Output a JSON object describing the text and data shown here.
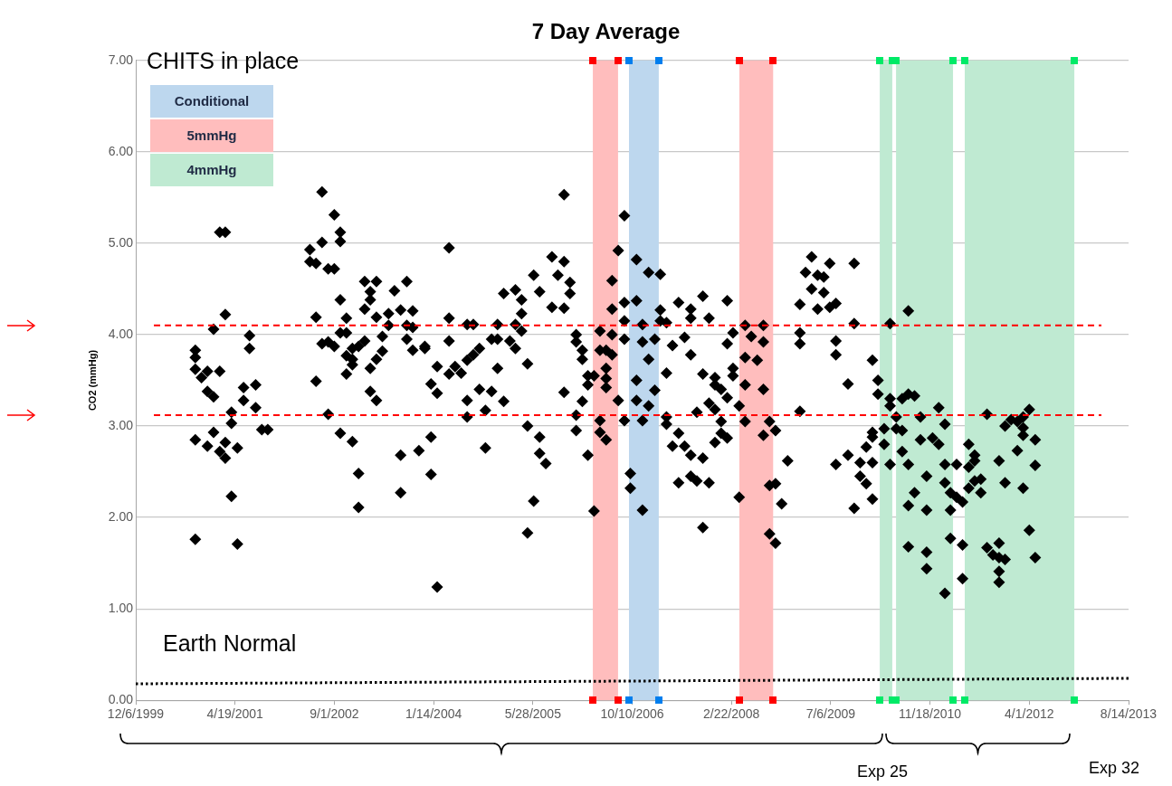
{
  "chart_data": {
    "type": "scatter",
    "title": "7 Day Average",
    "ylabel": "CO2 (mmHg)",
    "xlim": [
      "1999-12-06",
      "2013-08-14"
    ],
    "xticks": [
      {
        "value": "1999-12-06",
        "label": "12/6/1999"
      },
      {
        "value": "2001-04-19",
        "label": "4/19/2001"
      },
      {
        "value": "2002-09-01",
        "label": "9/1/2002"
      },
      {
        "value": "2004-01-14",
        "label": "1/14/2004"
      },
      {
        "value": "2005-05-28",
        "label": "5/28/2005"
      },
      {
        "value": "2006-10-10",
        "label": "10/10/2006"
      },
      {
        "value": "2008-02-22",
        "label": "2/22/2008"
      },
      {
        "value": "2009-07-06",
        "label": "7/6/2009"
      },
      {
        "value": "2010-11-18",
        "label": "11/18/2010"
      },
      {
        "value": "2012-04-01",
        "label": "4/1/2012"
      },
      {
        "value": "2013-08-14",
        "label": "8/14/2013"
      }
    ],
    "ylim": [
      0,
      7
    ],
    "yticks": [
      {
        "value": 0,
        "label": "0.00"
      },
      {
        "value": 1,
        "label": "1.00"
      },
      {
        "value": 2,
        "label": "2.00"
      },
      {
        "value": 3,
        "label": "3.00"
      },
      {
        "value": 4,
        "label": "4.00"
      },
      {
        "value": 5,
        "label": "5.00"
      },
      {
        "value": 6,
        "label": "6.00"
      },
      {
        "value": 7,
        "label": "7.00"
      }
    ],
    "grid": "y",
    "marker": "diamond",
    "series": [
      {
        "color": "#000000",
        "x": [
          "2000-10",
          "2000-10",
          "2000-10",
          "2000-10",
          "2000-10",
          "2000-11",
          "2000-12",
          "2000-12",
          "2000-12",
          "2001-01",
          "2001-01",
          "2001-01",
          "2001-02",
          "2001-02",
          "2001-02",
          "2001-03",
          "2001-03",
          "2001-03",
          "2001-03",
          "2001-04",
          "2001-04",
          "2001-04",
          "2001-05",
          "2001-05",
          "2001-06",
          "2001-06",
          "2001-07",
          "2001-07",
          "2001-08",
          "2001-08",
          "2001-09",
          "2001-10",
          "2002-05",
          "2002-05",
          "2002-06",
          "2002-06",
          "2002-06",
          "2002-07",
          "2002-07",
          "2002-07",
          "2002-08",
          "2002-08",
          "2002-08",
          "2002-09",
          "2002-09",
          "2002-09",
          "2002-10",
          "2002-10",
          "2002-10",
          "2002-10",
          "2002-10",
          "2002-11",
          "2002-11",
          "2002-11",
          "2002-11",
          "2002-12",
          "2002-12",
          "2002-12",
          "2002-12",
          "2003-01",
          "2003-01",
          "2003-01",
          "2003-02",
          "2003-02",
          "2003-02",
          "2003-03",
          "2003-03",
          "2003-03",
          "2003-03",
          "2003-04",
          "2003-04",
          "2003-04",
          "2003-04",
          "2003-05",
          "2003-05",
          "2003-06",
          "2003-06",
          "2003-07",
          "2003-08",
          "2003-08",
          "2003-08",
          "2003-09",
          "2003-09",
          "2003-09",
          "2003-10",
          "2003-10",
          "2003-10",
          "2003-11",
          "2003-12",
          "2003-12",
          "2004-01",
          "2004-01",
          "2004-01",
          "2004-02",
          "2004-02",
          "2004-02",
          "2004-04",
          "2004-04",
          "2004-04",
          "2004-04",
          "2004-05",
          "2004-06",
          "2004-07",
          "2004-07",
          "2004-07",
          "2004-07",
          "2004-08",
          "2004-08",
          "2004-09",
          "2004-09",
          "2004-10",
          "2004-10",
          "2004-11",
          "2004-11",
          "2004-12",
          "2004-12",
          "2004-12",
          "2005-01",
          "2005-01",
          "2005-02",
          "2005-03",
          "2005-03",
          "2005-03",
          "2005-04",
          "2005-04",
          "2005-04",
          "2005-05",
          "2005-05",
          "2005-05",
          "2005-06",
          "2005-06",
          "2005-07",
          "2005-07",
          "2005-07",
          "2005-08",
          "2005-09",
          "2005-09",
          "2005-10",
          "2005-11",
          "2005-11",
          "2005-11",
          "2005-11",
          "2005-12",
          "2005-12",
          "2006-01",
          "2006-01",
          "2006-01",
          "2006-01",
          "2006-02",
          "2006-02",
          "2006-02",
          "2006-03",
          "2006-03",
          "2006-03",
          "2006-04",
          "2006-04",
          "2006-05",
          "2006-05",
          "2006-05",
          "2006-05",
          "2006-06",
          "2006-06",
          "2006-06",
          "2006-06",
          "2006-06",
          "2006-07",
          "2006-07",
          "2006-07",
          "2006-08",
          "2006-07",
          "2006-08",
          "2006-09",
          "2006-09",
          "2006-09",
          "2006-09",
          "2006-09",
          "2006-10",
          "2006-10",
          "2006-11",
          "2006-11",
          "2006-11",
          "2006-11",
          "2006-12",
          "2006-12",
          "2006-12",
          "2006-12",
          "2007-01",
          "2007-01",
          "2007-01",
          "2007-02",
          "2007-02",
          "2007-03",
          "2007-03",
          "2007-03",
          "2007-04",
          "2007-04",
          "2007-04",
          "2007-04",
          "2007-05",
          "2007-05",
          "2007-06",
          "2007-06",
          "2007-06",
          "2007-07",
          "2007-07",
          "2007-08",
          "2007-08",
          "2007-08",
          "2007-08",
          "2007-08",
          "2007-09",
          "2007-09",
          "2007-10",
          "2007-10",
          "2007-10",
          "2007-10",
          "2007-11",
          "2007-11",
          "2007-11",
          "2007-12",
          "2007-12",
          "2007-12",
          "2007-12",
          "2008-01",
          "2008-01",
          "2008-01",
          "2008-02",
          "2008-02",
          "2008-02",
          "2008-02",
          "2008-03",
          "2008-03",
          "2008-03",
          "2008-04",
          "2008-04",
          "2008-05",
          "2008-05",
          "2008-05",
          "2008-05",
          "2008-06",
          "2008-07",
          "2008-08",
          "2008-08",
          "2008-08",
          "2008-08",
          "2008-09",
          "2008-09",
          "2008-09",
          "2008-10",
          "2008-10",
          "2008-10",
          "2008-11",
          "2008-12",
          "2009-02",
          "2009-02",
          "2009-02",
          "2009-02",
          "2009-03",
          "2009-04",
          "2009-04",
          "2009-05",
          "2009-05",
          "2009-06",
          "2009-06",
          "2009-07",
          "2009-07",
          "2009-08",
          "2009-08",
          "2009-08",
          "2009-08",
          "2009-10",
          "2009-10",
          "2009-11",
          "2009-11",
          "2009-11",
          "2009-12",
          "2009-12",
          "2010-01",
          "2010-01",
          "2010-02",
          "2010-02",
          "2010-02",
          "2010-02",
          "2010-02",
          "2010-03",
          "2010-03",
          "2010-04",
          "2010-04",
          "2010-05",
          "2010-05",
          "2010-05",
          "2010-05",
          "2010-06",
          "2010-06",
          "2010-07",
          "2010-07",
          "2010-07",
          "2010-08",
          "2010-08",
          "2010-08",
          "2010-08",
          "2010-08",
          "2010-09",
          "2010-09",
          "2010-10",
          "2010-10",
          "2010-11",
          "2010-11",
          "2010-11",
          "2010-11",
          "2010-12",
          "2011-01",
          "2011-01",
          "2011-02",
          "2011-02",
          "2011-02",
          "2011-02",
          "2011-03",
          "2011-03",
          "2011-03",
          "2011-04",
          "2011-04",
          "2011-05",
          "2011-05",
          "2011-05",
          "2011-06",
          "2011-06",
          "2011-06",
          "2011-07",
          "2011-07",
          "2011-07",
          "2011-08",
          "2011-08",
          "2011-09",
          "2011-09",
          "2011-10",
          "2011-11",
          "2011-11",
          "2011-11",
          "2011-11",
          "2011-11",
          "2011-12",
          "2011-12",
          "2011-12",
          "2012-01",
          "2012-02",
          "2012-02",
          "2012-03",
          "2012-03",
          "2012-03",
          "2012-03",
          "2012-04",
          "2012-04",
          "2012-05",
          "2012-05",
          "2012-05"
        ],
        "values": [
          1.76,
          2.85,
          3.62,
          3.83,
          3.75,
          3.53,
          3.38,
          2.78,
          3.6,
          4.06,
          3.32,
          2.93,
          2.72,
          3.6,
          5.12,
          5.12,
          2.65,
          2.82,
          4.22,
          3.15,
          3.03,
          2.23,
          1.71,
          2.76,
          3.42,
          3.28,
          3.99,
          3.85,
          3.45,
          3.2,
          2.96,
          2.96,
          4.8,
          4.93,
          3.49,
          4.19,
          4.78,
          5.56,
          3.9,
          5.01,
          3.92,
          4.72,
          3.13,
          5.31,
          4.72,
          3.87,
          2.92,
          5.12,
          4.02,
          5.02,
          4.38,
          3.57,
          3.77,
          4.02,
          4.18,
          3.67,
          3.85,
          3.73,
          2.83,
          2.48,
          2.11,
          3.87,
          4.58,
          4.28,
          3.93,
          3.63,
          4.38,
          3.38,
          4.47,
          4.19,
          4.58,
          3.73,
          3.28,
          3.82,
          3.98,
          4.1,
          4.23,
          4.48,
          2.68,
          2.27,
          4.27,
          4.1,
          3.95,
          4.58,
          3.83,
          4.26,
          4.08,
          2.73,
          3.87,
          3.85,
          3.46,
          2.47,
          2.88,
          1.24,
          3.36,
          3.65,
          3.57,
          4.18,
          4.95,
          3.93,
          3.65,
          3.58,
          4.11,
          3.72,
          3.28,
          3.1,
          3.78,
          4.11,
          3.4,
          3.85,
          2.76,
          3.17,
          3.95,
          3.38,
          3.63,
          4.11,
          3.95,
          4.45,
          3.27,
          3.93,
          4.11,
          3.85,
          4.49,
          4.23,
          4.04,
          4.38,
          1.83,
          3.68,
          3.0,
          2.18,
          4.65,
          2.7,
          2.88,
          4.47,
          2.59,
          4.3,
          4.85,
          4.65,
          5.53,
          3.37,
          4.29,
          4.8,
          4.45,
          4.57,
          4.0,
          3.12,
          3.92,
          2.95,
          3.73,
          3.83,
          3.27,
          2.68,
          3.55,
          3.45,
          2.07,
          3.55,
          3.83,
          2.93,
          4.04,
          3.06,
          2.85,
          3.63,
          3.83,
          3.52,
          3.42,
          4.59,
          3.78,
          4.0,
          4.92,
          4.28,
          3.28,
          4.15,
          3.95,
          4.35,
          3.06,
          5.3,
          2.48,
          2.32,
          4.37,
          3.5,
          4.82,
          3.28,
          4.11,
          3.06,
          3.92,
          2.08,
          4.68,
          3.73,
          3.22,
          3.95,
          3.39,
          4.15,
          4.66,
          4.27,
          3.58,
          3.02,
          3.1,
          4.13,
          3.88,
          2.78,
          4.35,
          2.92,
          2.38,
          3.97,
          2.78,
          4.18,
          3.78,
          4.28,
          2.68,
          2.45,
          3.15,
          2.4,
          1.89,
          4.42,
          3.57,
          2.65,
          3.25,
          4.18,
          2.38,
          3.45,
          2.82,
          3.18,
          3.53,
          2.92,
          3.05,
          3.4,
          2.87,
          4.37,
          3.31,
          3.9,
          4.02,
          3.55,
          3.63,
          3.22,
          2.22,
          3.45,
          3.75,
          3.05,
          4.1,
          3.98,
          3.72,
          2.9,
          3.4,
          3.92,
          4.1,
          3.05,
          1.82,
          2.35,
          1.72,
          2.37,
          2.95,
          2.15,
          2.62,
          3.16,
          4.02,
          4.33,
          3.9,
          4.68,
          4.85,
          4.5,
          4.65,
          4.28,
          4.46,
          4.63,
          4.78,
          4.3,
          3.93,
          4.34,
          3.78,
          2.58,
          2.68,
          3.46,
          2.1,
          4.78,
          4.12,
          2.6,
          2.45,
          2.37,
          2.77,
          2.6,
          2.88,
          2.2,
          3.72,
          2.93,
          3.35,
          3.5,
          2.97,
          2.8,
          3.3,
          3.22,
          2.58,
          4.12,
          3.1,
          2.97,
          3.3,
          2.72,
          2.95,
          4.26,
          3.35,
          2.13,
          2.58,
          1.68,
          2.27,
          3.33,
          2.85,
          3.1,
          2.08,
          1.44,
          1.62,
          2.45,
          2.87,
          2.8,
          3.2,
          3.02,
          2.38,
          2.58,
          1.17,
          2.27,
          1.77,
          2.08,
          2.58,
          2.22,
          2.17,
          1.7,
          1.33,
          2.8,
          2.32,
          2.55,
          2.68,
          2.4,
          2.62,
          2.42,
          2.27,
          1.67,
          3.13,
          1.59,
          1.72,
          2.62,
          1.41,
          1.56,
          1.29,
          2.38,
          3.0,
          1.54,
          3.07,
          3.05,
          2.73,
          3.1,
          2.32,
          2.9,
          2.98,
          3.18,
          1.86,
          1.56,
          2.57,
          2.85
        ]
      },
      {
        "type": "line",
        "name": "Earth Normal",
        "color": "#000000",
        "line_style": "dotted",
        "marker": "none",
        "x": [
          "1999-12-06",
          "2013-08-14"
        ],
        "values": [
          0.18,
          0.24
        ]
      }
    ],
    "ref_lines": [
      {
        "axis": "y",
        "value": 4.1,
        "color": "#ff0000",
        "line_style": "dashed"
      },
      {
        "axis": "y",
        "value": 3.12,
        "color": "#ff0000",
        "line_style": "dashed"
      }
    ],
    "bands": [
      {
        "axis": "x",
        "from": "2006-09-24",
        "to": "2007-02-21",
        "color": "#bdd7ee"
      },
      {
        "axis": "x",
        "from": "2006-03-26",
        "to": "2006-07-31",
        "color": "#ffbdbd"
      },
      {
        "axis": "x",
        "from": "2010-03-10",
        "to": "2010-05-12",
        "color": "#bfead2"
      },
      {
        "axis": "x",
        "from": "2008-04-02",
        "to": "2008-09-19",
        "color": "#ffbdbd"
      },
      {
        "axis": "x",
        "from": "2010-05-31",
        "to": "2011-03-14",
        "color": "#bfead2"
      },
      {
        "axis": "x",
        "from": "2011-05-12",
        "to": "2012-11-14",
        "color": "#bfead2"
      }
    ],
    "annotations": [
      "CHITS in place",
      "Exp 25",
      "Exp 32",
      "Conditional",
      "5mmHg",
      "4mmHg"
    ]
  }
}
